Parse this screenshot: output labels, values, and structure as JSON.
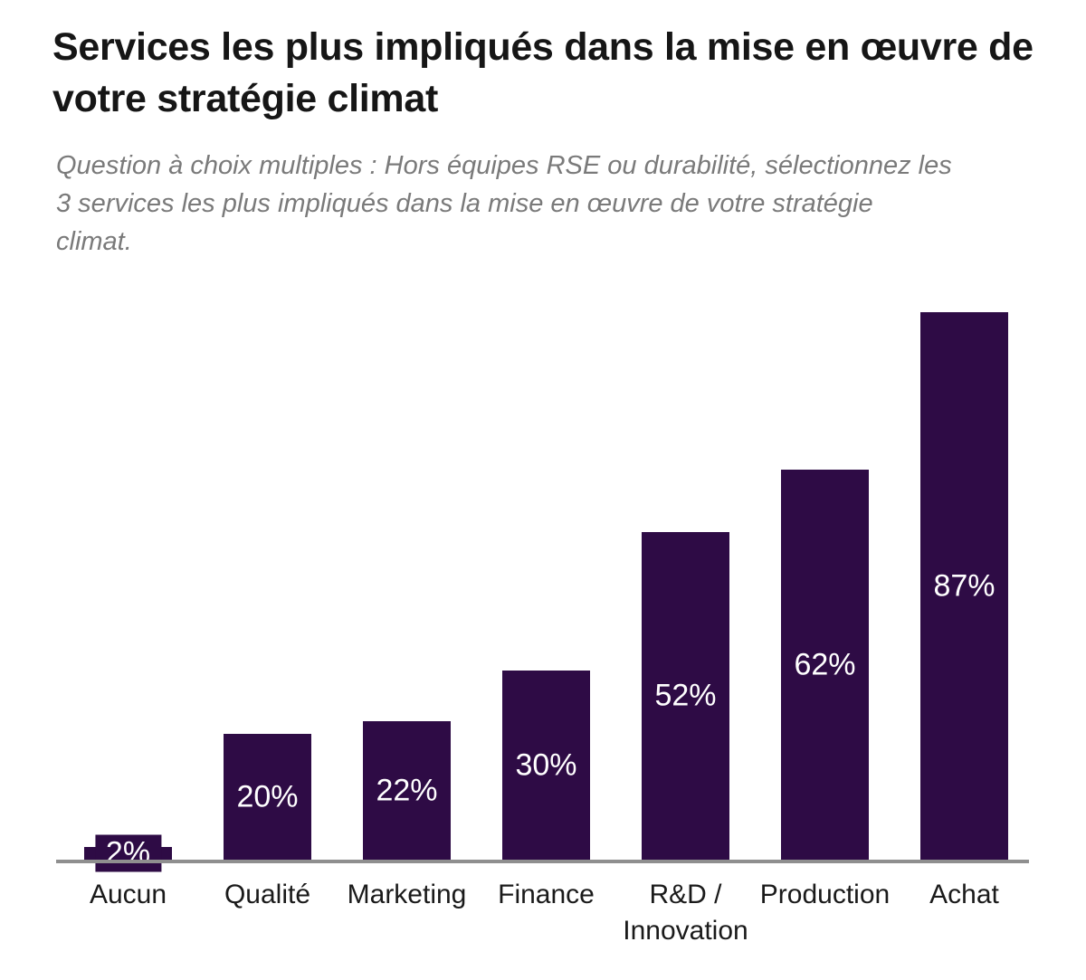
{
  "header": {
    "title": "Services les plus impliqués dans la mise en œuvre de\nvotre stratégie climat",
    "subtitle": "Question à choix multiples : Hors équipes RSE ou durabilité, sélectionnez les\n3 services les plus impliqués dans la mise en œuvre de votre stratégie\nclimat."
  },
  "chart_data": {
    "type": "bar",
    "orientation": "vertical",
    "title": "Services les plus impliqués dans la mise en œuvre de votre stratégie climat",
    "subtitle": "Question à choix multiples : Hors équipes RSE ou durabilité, sélectionnez les 3 services les plus impliqués dans la mise en œuvre de votre stratégie climat.",
    "categories": [
      "Aucun",
      "Qualité",
      "Marketing",
      "Finance",
      "R&D / Innovation",
      "Production",
      "Achat"
    ],
    "category_labels": [
      "Aucun",
      "Qualité",
      "Marketing",
      "Finance",
      "R&D /\nInnovation",
      "Production",
      "Achat"
    ],
    "values": [
      2,
      20,
      22,
      30,
      52,
      62,
      87
    ],
    "value_labels": [
      "2%",
      "20%",
      "22%",
      "30%",
      "52%",
      "62%",
      "87%"
    ],
    "unit": "%",
    "xlabel": "",
    "ylabel": "",
    "ylim": [
      0,
      87
    ],
    "grid": false,
    "legend": false,
    "value_label_position": "centered-in-bar",
    "colors": {
      "bar": "#2e0b45",
      "value_label": "#ffffff",
      "axis_line": "#8f8f8f",
      "category_label": "#1a1a1a",
      "title": "#161616",
      "subtitle": "#7a7a7a",
      "background": "#ffffff"
    }
  }
}
